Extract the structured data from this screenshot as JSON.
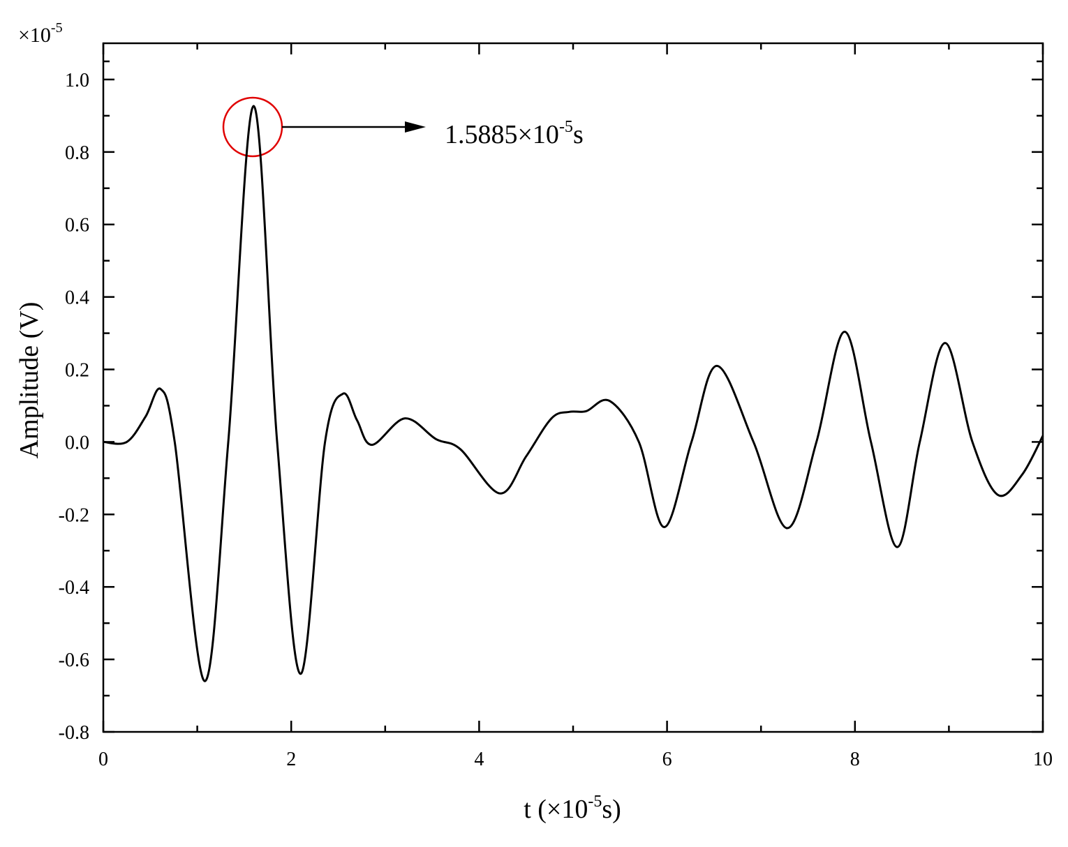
{
  "chart_data": {
    "type": "line",
    "corner_label": {
      "base": "×10",
      "exponent": "-5"
    },
    "x_label": {
      "before": "t (×10",
      "exponent": "-5",
      "after": "s)"
    },
    "y_label": "Amplitude (V)",
    "annotation": {
      "before": "1.5885×10",
      "exponent": "-5",
      "after": "s"
    },
    "xlim": [
      0,
      10
    ],
    "ylim": [
      -0.8,
      1.1
    ],
    "xticks": [
      0,
      2,
      4,
      6,
      8,
      10
    ],
    "yticks": [
      -0.8,
      -0.6,
      -0.4,
      -0.2,
      {
        "value": 0,
        "label": "0.0"
      },
      0.2,
      0.4,
      0.6,
      0.8,
      {
        "value": 1,
        "label": "1.0"
      }
    ],
    "series": [
      {
        "color": "#000000",
        "x": [
          0,
          0.25,
          0.45,
          0.61,
          0.76,
          1.08,
          1.33,
          1.6,
          1.85,
          2.1,
          2.36,
          2.55,
          2.7,
          2.86,
          3.21,
          3.54,
          3.8,
          4.22,
          4.5,
          4.77,
          4.96,
          5.14,
          5.39,
          5.7,
          5.97,
          6.26,
          6.53,
          6.92,
          7.28,
          7.59,
          7.89,
          8.17,
          8.45,
          8.69,
          8.96,
          9.25,
          9.52,
          9.78,
          10
        ],
        "values": [
          0,
          0,
          0.07,
          0.146,
          0,
          -0.66,
          0,
          0.927,
          0,
          -0.64,
          0,
          0.133,
          0.06,
          -0.008,
          0.065,
          0.008,
          -0.02,
          -0.142,
          -0.04,
          0.065,
          0.083,
          0.085,
          0.113,
          0,
          -0.235,
          0,
          0.21,
          0,
          -0.238,
          0,
          0.304,
          0,
          -0.29,
          0,
          0.273,
          0,
          -0.146,
          -0.09,
          0.017
        ]
      }
    ]
  }
}
